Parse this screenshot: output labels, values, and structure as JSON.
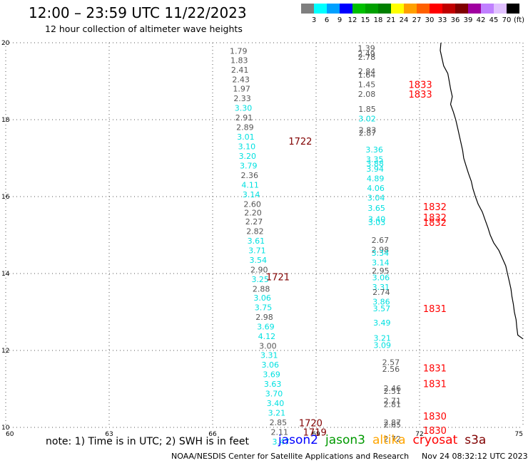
{
  "header": {
    "title": "12:00 – 23:59 UTC 11/22/2023",
    "subtitle": "12 hour collection of altimeter wave heights"
  },
  "colorbar": {
    "colors": [
      "#7f7f7f",
      "#00ffff",
      "#00a0ff",
      "#0000ff",
      "#00c000",
      "#00a000",
      "#008000",
      "#ffff00",
      "#ffa000",
      "#ff6000",
      "#ff0000",
      "#c00000",
      "#800000",
      "#a000a0",
      "#c080ff",
      "#e0c0ff",
      "#000000"
    ],
    "labels": [
      "3",
      "6",
      "9",
      "12",
      "15",
      "18",
      "21",
      "24",
      "27",
      "30",
      "33",
      "36",
      "39",
      "42",
      "45",
      "70"
    ],
    "unit": "(ft)"
  },
  "footer": {
    "note": "note: 1) Time is in UTC; 2) SWH is in feet",
    "satellites": [
      {
        "name": "jason2",
        "color": "#0000ff"
      },
      {
        "name": "jason3",
        "color": "#009900"
      },
      {
        "name": "altika",
        "color": "#ffa500"
      },
      {
        "name": "cryosat",
        "color": "#ff0000"
      },
      {
        "name": "s3a",
        "color": "#800000"
      }
    ],
    "credit": "NOAA/NESDIS Center for Satellite Applications and Research",
    "timestamp": "Nov 24 08:32:12 UTC 2023"
  },
  "chart_data": {
    "type": "scatter",
    "title": "12:00 – 23:59 UTC 11/22/2023",
    "xlim": [
      60,
      75
    ],
    "ylim": [
      10,
      20
    ],
    "x_ticks": [
      "60",
      "63",
      "66",
      "69",
      "72",
      "75"
    ],
    "y_ticks": [
      "10",
      "12",
      "14",
      "16",
      "18",
      "20"
    ],
    "grid": true,
    "series": [
      {
        "name": "s3a",
        "color_rule": "gray below 3 ft, cyan 3-6 ft",
        "points": [
          {
            "x": 66.75,
            "y": 19.79,
            "label": "1.79",
            "c": "g"
          },
          {
            "x": 66.77,
            "y": 19.55,
            "label": "1.83",
            "c": "g"
          },
          {
            "x": 66.79,
            "y": 19.3,
            "label": "2.41",
            "c": "g"
          },
          {
            "x": 66.82,
            "y": 19.05,
            "label": "2.43",
            "c": "g"
          },
          {
            "x": 66.84,
            "y": 18.81,
            "label": "1.97",
            "c": "g"
          },
          {
            "x": 66.86,
            "y": 18.56,
            "label": "2.33",
            "c": "g"
          },
          {
            "x": 66.89,
            "y": 18.31,
            "label": "3.30",
            "c": "c"
          },
          {
            "x": 66.91,
            "y": 18.06,
            "label": "2.91",
            "c": "g"
          },
          {
            "x": 66.94,
            "y": 17.81,
            "label": "2.89",
            "c": "g"
          },
          {
            "x": 66.96,
            "y": 17.56,
            "label": "3.01",
            "c": "c"
          },
          {
            "x": 66.99,
            "y": 17.31,
            "label": "3.10",
            "c": "c"
          },
          {
            "x": 67.01,
            "y": 17.06,
            "label": "3.20",
            "c": "c"
          },
          {
            "x": 67.04,
            "y": 16.81,
            "label": "3.79",
            "c": "c"
          },
          {
            "x": 67.07,
            "y": 16.56,
            "label": "2.36",
            "c": "g"
          },
          {
            "x": 67.09,
            "y": 16.31,
            "label": "4.11",
            "c": "c"
          },
          {
            "x": 67.12,
            "y": 16.06,
            "label": "3.14",
            "c": "c"
          },
          {
            "x": 67.15,
            "y": 15.81,
            "label": "2.60",
            "c": "g"
          },
          {
            "x": 67.17,
            "y": 15.58,
            "label": "2.20",
            "c": "g"
          },
          {
            "x": 67.2,
            "y": 15.35,
            "label": "2.27",
            "c": "g"
          },
          {
            "x": 67.23,
            "y": 15.1,
            "label": "2.82",
            "c": "g"
          },
          {
            "x": 67.26,
            "y": 14.85,
            "label": "3.61",
            "c": "c"
          },
          {
            "x": 67.29,
            "y": 14.6,
            "label": "3.71",
            "c": "c"
          },
          {
            "x": 67.32,
            "y": 14.35,
            "label": "3.54",
            "c": "c"
          },
          {
            "x": 67.35,
            "y": 14.1,
            "label": "2.90",
            "c": "g"
          },
          {
            "x": 67.38,
            "y": 13.85,
            "label": "3.25",
            "c": "c"
          },
          {
            "x": 67.41,
            "y": 13.6,
            "label": "2.88",
            "c": "g"
          },
          {
            "x": 67.44,
            "y": 13.37,
            "label": "3.06",
            "c": "c"
          },
          {
            "x": 67.47,
            "y": 13.12,
            "label": "3.75",
            "c": "c"
          },
          {
            "x": 67.5,
            "y": 12.87,
            "label": "2.98",
            "c": "g"
          },
          {
            "x": 67.54,
            "y": 12.62,
            "label": "3.69",
            "c": "c"
          },
          {
            "x": 67.57,
            "y": 12.37,
            "label": "4.12",
            "c": "c"
          },
          {
            "x": 67.6,
            "y": 12.12,
            "label": "3.00",
            "c": "g"
          },
          {
            "x": 67.64,
            "y": 11.88,
            "label": "3.31",
            "c": "c"
          },
          {
            "x": 67.67,
            "y": 11.63,
            "label": "3.06",
            "c": "c"
          },
          {
            "x": 67.71,
            "y": 11.38,
            "label": "3.69",
            "c": "c"
          },
          {
            "x": 67.74,
            "y": 11.13,
            "label": "3.63",
            "c": "c"
          },
          {
            "x": 67.78,
            "y": 10.88,
            "label": "3.70",
            "c": "c"
          },
          {
            "x": 67.82,
            "y": 10.63,
            "label": "3.40",
            "c": "c"
          },
          {
            "x": 67.86,
            "y": 10.38,
            "label": "3.21",
            "c": "c"
          },
          {
            "x": 67.9,
            "y": 10.13,
            "label": "2.85",
            "c": "g"
          },
          {
            "x": 67.94,
            "y": 9.88,
            "label": "2.11",
            "c": "g"
          },
          {
            "x": 67.98,
            "y": 9.63,
            "label": "3.47",
            "c": "c"
          },
          {
            "x": 68.02,
            "y": 9.38,
            "label": "3.28",
            "c": "c"
          },
          {
            "x": 70.46,
            "y": 19.86,
            "label": "1.39",
            "c": "g"
          },
          {
            "x": 70.46,
            "y": 19.71,
            "label": "2.49",
            "c": "g"
          },
          {
            "x": 70.47,
            "y": 19.63,
            "label": "2.78",
            "c": "g"
          },
          {
            "x": 70.47,
            "y": 19.26,
            "label": "2.84",
            "c": "g"
          },
          {
            "x": 70.47,
            "y": 19.17,
            "label": "1.64",
            "c": "g"
          },
          {
            "x": 70.47,
            "y": 18.92,
            "label": "1.45",
            "c": "g"
          },
          {
            "x": 70.47,
            "y": 18.67,
            "label": "2.08",
            "c": "g"
          },
          {
            "x": 70.48,
            "y": 18.28,
            "label": "1.85",
            "c": "g"
          },
          {
            "x": 70.48,
            "y": 18.03,
            "label": "3.02",
            "c": "c"
          },
          {
            "x": 70.49,
            "y": 17.73,
            "label": "2.83",
            "c": "g"
          },
          {
            "x": 70.49,
            "y": 17.66,
            "label": "2.87",
            "c": "g"
          },
          {
            "x": 70.69,
            "y": 17.22,
            "label": "3.36",
            "c": "c"
          },
          {
            "x": 70.7,
            "y": 16.97,
            "label": "3.35",
            "c": "c"
          },
          {
            "x": 70.71,
            "y": 16.86,
            "label": "3.88",
            "c": "c"
          },
          {
            "x": 70.71,
            "y": 16.72,
            "label": "3.94",
            "c": "c"
          },
          {
            "x": 70.72,
            "y": 16.47,
            "label": "4.89",
            "c": "c"
          },
          {
            "x": 70.73,
            "y": 16.22,
            "label": "4.06",
            "c": "c"
          },
          {
            "x": 70.74,
            "y": 15.97,
            "label": "3.04",
            "c": "c"
          },
          {
            "x": 70.75,
            "y": 15.7,
            "label": "3.65",
            "c": "c"
          },
          {
            "x": 70.76,
            "y": 15.42,
            "label": "3.40",
            "c": "c"
          },
          {
            "x": 70.76,
            "y": 15.33,
            "label": "3.03",
            "c": "c"
          },
          {
            "x": 70.86,
            "y": 14.87,
            "label": "2.67",
            "c": "g"
          },
          {
            "x": 70.86,
            "y": 14.62,
            "label": "2.98",
            "c": "g"
          },
          {
            "x": 70.86,
            "y": 14.54,
            "label": "3.34",
            "c": "c"
          },
          {
            "x": 70.87,
            "y": 14.29,
            "label": "3.14",
            "c": "c"
          },
          {
            "x": 70.87,
            "y": 14.07,
            "label": "2.95",
            "c": "g"
          },
          {
            "x": 70.88,
            "y": 13.9,
            "label": "3.06",
            "c": "c"
          },
          {
            "x": 70.88,
            "y": 13.65,
            "label": "3.31",
            "c": "c"
          },
          {
            "x": 70.89,
            "y": 13.52,
            "label": "2.74",
            "c": "g"
          },
          {
            "x": 70.89,
            "y": 13.27,
            "label": "3.86",
            "c": "c"
          },
          {
            "x": 70.9,
            "y": 13.09,
            "label": "3.57",
            "c": "c"
          },
          {
            "x": 70.91,
            "y": 12.72,
            "label": "3.49",
            "c": "c"
          },
          {
            "x": 70.92,
            "y": 12.32,
            "label": "3.21",
            "c": "c"
          },
          {
            "x": 70.92,
            "y": 12.14,
            "label": "3.09",
            "c": "c"
          },
          {
            "x": 71.17,
            "y": 11.69,
            "label": "2.57",
            "c": "g"
          },
          {
            "x": 71.17,
            "y": 11.52,
            "label": "2.56",
            "c": "g"
          },
          {
            "x": 71.21,
            "y": 11.02,
            "label": "2.46",
            "c": "g"
          },
          {
            "x": 71.21,
            "y": 10.94,
            "label": "2.51",
            "c": "g"
          },
          {
            "x": 71.21,
            "y": 10.69,
            "label": "2.71",
            "c": "g"
          },
          {
            "x": 71.21,
            "y": 10.6,
            "label": "2.81",
            "c": "g"
          },
          {
            "x": 71.21,
            "y": 10.13,
            "label": "2.87",
            "c": "g"
          },
          {
            "x": 71.21,
            "y": 10.07,
            "label": "2.65",
            "c": "g"
          },
          {
            "x": 71.21,
            "y": 9.7,
            "label": "2.72",
            "c": "g"
          }
        ]
      }
    ],
    "time_labels": [
      {
        "x": 68.2,
        "y": 17.44,
        "text": "1722",
        "color": "#800000"
      },
      {
        "x": 67.55,
        "y": 13.92,
        "text": "1721",
        "color": "#800000"
      },
      {
        "x": 68.5,
        "y": 10.12,
        "text": "1720",
        "color": "#800000"
      },
      {
        "x": 68.62,
        "y": 9.88,
        "text": "1719",
        "color": "#800000"
      },
      {
        "x": 71.68,
        "y": 18.92,
        "text": "1833",
        "color": "#ff0000"
      },
      {
        "x": 71.68,
        "y": 18.67,
        "text": "1833",
        "color": "#ff0000"
      },
      {
        "x": 72.1,
        "y": 15.74,
        "text": "1832",
        "color": "#ff0000"
      },
      {
        "x": 72.1,
        "y": 15.46,
        "text": "1832",
        "color": "#ff0000"
      },
      {
        "x": 72.1,
        "y": 15.33,
        "text": "1832",
        "color": "#ff0000"
      },
      {
        "x": 72.1,
        "y": 13.09,
        "text": "1831",
        "color": "#ff0000"
      },
      {
        "x": 72.1,
        "y": 11.55,
        "text": "1831",
        "color": "#ff0000"
      },
      {
        "x": 72.1,
        "y": 11.14,
        "text": "1831",
        "color": "#ff0000"
      },
      {
        "x": 72.1,
        "y": 10.3,
        "text": "1830",
        "color": "#ff0000"
      },
      {
        "x": 72.1,
        "y": 9.93,
        "text": "1830",
        "color": "#ff0000"
      }
    ],
    "coastline": [
      [
        72.62,
        20.0
      ],
      [
        72.6,
        19.8
      ],
      [
        72.65,
        19.6
      ],
      [
        72.7,
        19.4
      ],
      [
        72.82,
        19.2
      ],
      [
        72.86,
        19.0
      ],
      [
        72.9,
        18.8
      ],
      [
        72.95,
        18.6
      ],
      [
        72.9,
        18.4
      ],
      [
        72.98,
        18.2
      ],
      [
        73.05,
        18.0
      ],
      [
        73.1,
        17.8
      ],
      [
        73.15,
        17.6
      ],
      [
        73.2,
        17.4
      ],
      [
        73.25,
        17.2
      ],
      [
        73.28,
        17.0
      ],
      [
        73.35,
        16.8
      ],
      [
        73.42,
        16.6
      ],
      [
        73.5,
        16.4
      ],
      [
        73.55,
        16.2
      ],
      [
        73.62,
        16.0
      ],
      [
        73.7,
        15.8
      ],
      [
        73.82,
        15.6
      ],
      [
        73.9,
        15.4
      ],
      [
        73.98,
        15.2
      ],
      [
        74.05,
        15.0
      ],
      [
        74.15,
        14.8
      ],
      [
        74.3,
        14.6
      ],
      [
        74.4,
        14.4
      ],
      [
        74.5,
        14.2
      ],
      [
        74.55,
        14.0
      ],
      [
        74.6,
        13.8
      ],
      [
        74.65,
        13.6
      ],
      [
        74.68,
        13.4
      ],
      [
        74.72,
        13.2
      ],
      [
        74.75,
        13.0
      ],
      [
        74.8,
        12.8
      ],
      [
        74.82,
        12.6
      ],
      [
        74.85,
        12.4
      ],
      [
        75.0,
        12.3
      ]
    ]
  }
}
